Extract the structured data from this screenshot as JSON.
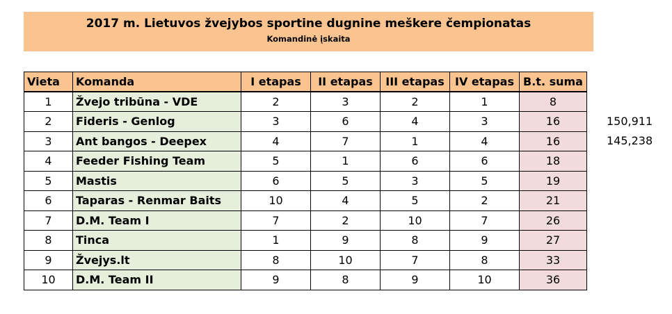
{
  "header": {
    "title": "2017 m. Lietuvos žvejybos sportine dugnine meškere čempionatas",
    "subtitle": "Komandinė įskaita"
  },
  "table": {
    "columns": [
      "Vieta",
      "Komanda",
      "I etapas",
      "II etapas",
      "III etapas",
      "IV etapas",
      "B.t. suma"
    ],
    "rows": [
      {
        "place": "1",
        "team": "Žvejo tribūna - VDE",
        "s1": "2",
        "s2": "3",
        "s3": "2",
        "s4": "1",
        "sum": "8"
      },
      {
        "place": "2",
        "team": "Fideris - Genlog",
        "s1": "3",
        "s2": "6",
        "s3": "4",
        "s4": "3",
        "sum": "16"
      },
      {
        "place": "3",
        "team": "Ant bangos - Deepex",
        "s1": "4",
        "s2": "7",
        "s3": "1",
        "s4": "4",
        "sum": "16"
      },
      {
        "place": "4",
        "team": "Feeder Fishing Team",
        "s1": "5",
        "s2": "1",
        "s3": "6",
        "s4": "6",
        "sum": "18"
      },
      {
        "place": "5",
        "team": "Mastis",
        "s1": "6",
        "s2": "5",
        "s3": "3",
        "s4": "5",
        "sum": "19"
      },
      {
        "place": "6",
        "team": "Taparas - Renmar Baits",
        "s1": "10",
        "s2": "4",
        "s3": "5",
        "s4": "2",
        "sum": "21"
      },
      {
        "place": "7",
        "team": "D.M. Team I",
        "s1": "7",
        "s2": "2",
        "s3": "10",
        "s4": "7",
        "sum": "26"
      },
      {
        "place": "8",
        "team": "Tinca",
        "s1": "1",
        "s2": "9",
        "s3": "8",
        "s4": "9",
        "sum": "27"
      },
      {
        "place": "9",
        "team": "Žvejys.lt",
        "s1": "8",
        "s2": "10",
        "s3": "7",
        "s4": "8",
        "sum": "33"
      },
      {
        "place": "10",
        "team": "D.M. Team II",
        "s1": "9",
        "s2": "8",
        "s3": "9",
        "s4": "10",
        "sum": "36"
      }
    ]
  },
  "side_notes": {
    "row2": "150,911",
    "row3": "145,238"
  },
  "colors": {
    "header_fill": "#fac491",
    "team_fill": "#e6efdb",
    "sum_fill": "#f2dcdb"
  }
}
